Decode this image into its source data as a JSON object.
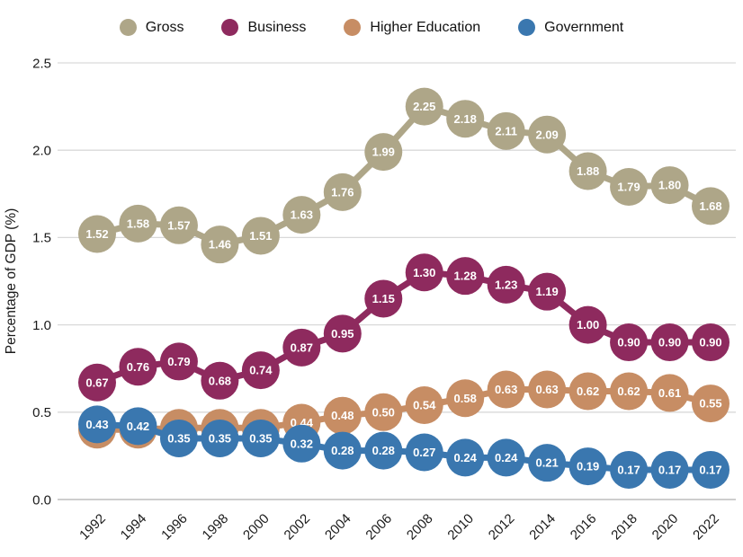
{
  "chart_data": {
    "type": "line",
    "title": "",
    "xlabel": "",
    "ylabel": "Percentage of GDP (%)",
    "ylim": [
      0,
      2.5
    ],
    "yticks": [
      0.0,
      0.5,
      1.0,
      1.5,
      2.0,
      2.5
    ],
    "grid": true,
    "legend_position": "top",
    "marker_style": "labeled-circle",
    "categories": [
      "1992",
      "1994",
      "1996",
      "1998",
      "2000",
      "2002",
      "2004",
      "2006",
      "2008",
      "2010",
      "2012",
      "2014",
      "2016",
      "2018",
      "2020",
      "2022"
    ],
    "series": [
      {
        "name": "Gross",
        "color": "#aea688",
        "values": [
          1.52,
          1.58,
          1.57,
          1.46,
          1.51,
          1.63,
          1.76,
          1.99,
          2.25,
          2.18,
          2.11,
          2.09,
          1.88,
          1.79,
          1.8,
          1.68
        ],
        "labels_hidden_first_n": 0
      },
      {
        "name": "Business",
        "color": "#8e2a5e",
        "values": [
          0.67,
          0.76,
          0.79,
          0.68,
          0.74,
          0.87,
          0.95,
          1.15,
          1.3,
          1.28,
          1.23,
          1.19,
          1.0,
          0.9,
          0.9,
          0.9
        ],
        "labels_hidden_first_n": 0
      },
      {
        "name": "Higher Education",
        "color": "#c78d64",
        "values": [
          0.4,
          0.4,
          0.41,
          0.41,
          0.41,
          0.44,
          0.48,
          0.5,
          0.54,
          0.58,
          0.63,
          0.63,
          0.62,
          0.62,
          0.61,
          0.55
        ],
        "labels_hidden_first_n": 5
      },
      {
        "name": "Government",
        "color": "#3a77af",
        "values": [
          0.43,
          0.42,
          0.35,
          0.35,
          0.35,
          0.32,
          0.28,
          0.28,
          0.27,
          0.24,
          0.24,
          0.21,
          0.19,
          0.17,
          0.17,
          0.17
        ],
        "labels_hidden_first_n": 0
      }
    ],
    "colors": {
      "gridline": "#d9d9d9",
      "baseline": "#b0b0b0",
      "tick_text": "#1a1a1a"
    }
  }
}
